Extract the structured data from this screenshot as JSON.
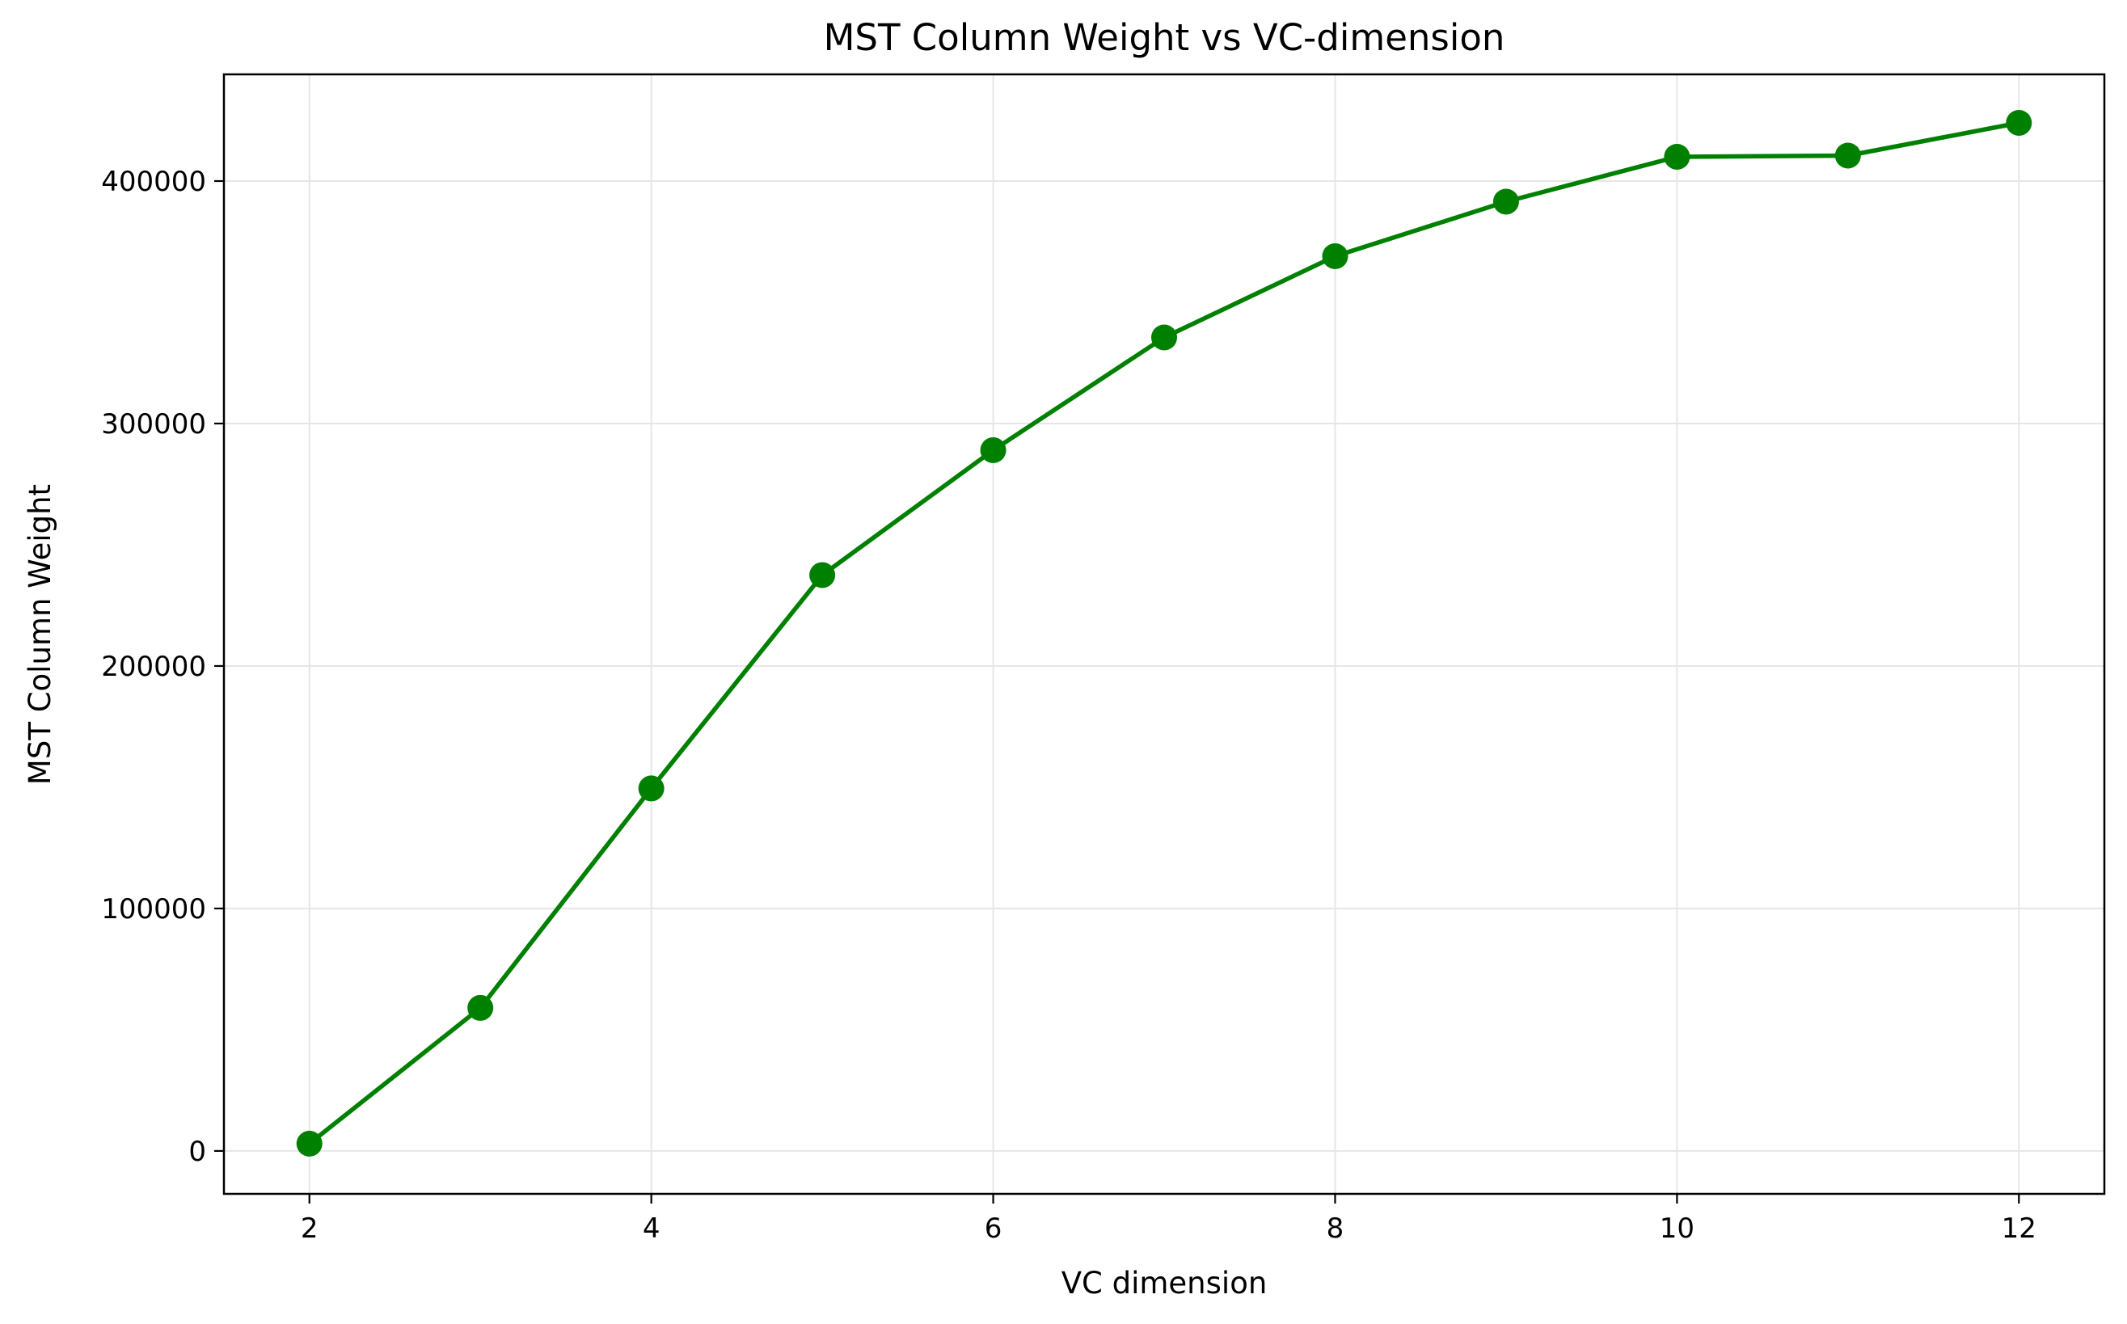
{
  "chart_data": {
    "type": "line",
    "title": "MST Column Weight vs VC-dimension",
    "xlabel": "VC dimension",
    "ylabel": "MST Column Weight",
    "x": [
      2,
      3,
      4,
      5,
      6,
      7,
      8,
      9,
      10,
      11,
      12
    ],
    "series": [
      {
        "values": [
          3000,
          59000,
          149500,
          237500,
          289000,
          335500,
          369000,
          391500,
          410000,
          410500,
          424000
        ],
        "color": "#008000",
        "marker": "circle"
      }
    ],
    "xlim": [
      1.5,
      12.5
    ],
    "ylim": [
      -17700,
      444000
    ],
    "xticks": [
      2,
      4,
      6,
      8,
      10,
      12
    ],
    "yticks": [
      0,
      100000,
      200000,
      300000,
      400000
    ],
    "xtick_labels": [
      "2",
      "4",
      "6",
      "8",
      "10",
      "12"
    ],
    "ytick_labels": [
      "0",
      "100000",
      "200000",
      "300000",
      "400000"
    ],
    "grid": true,
    "grid_color": "#e6e6e6",
    "legend": false
  }
}
